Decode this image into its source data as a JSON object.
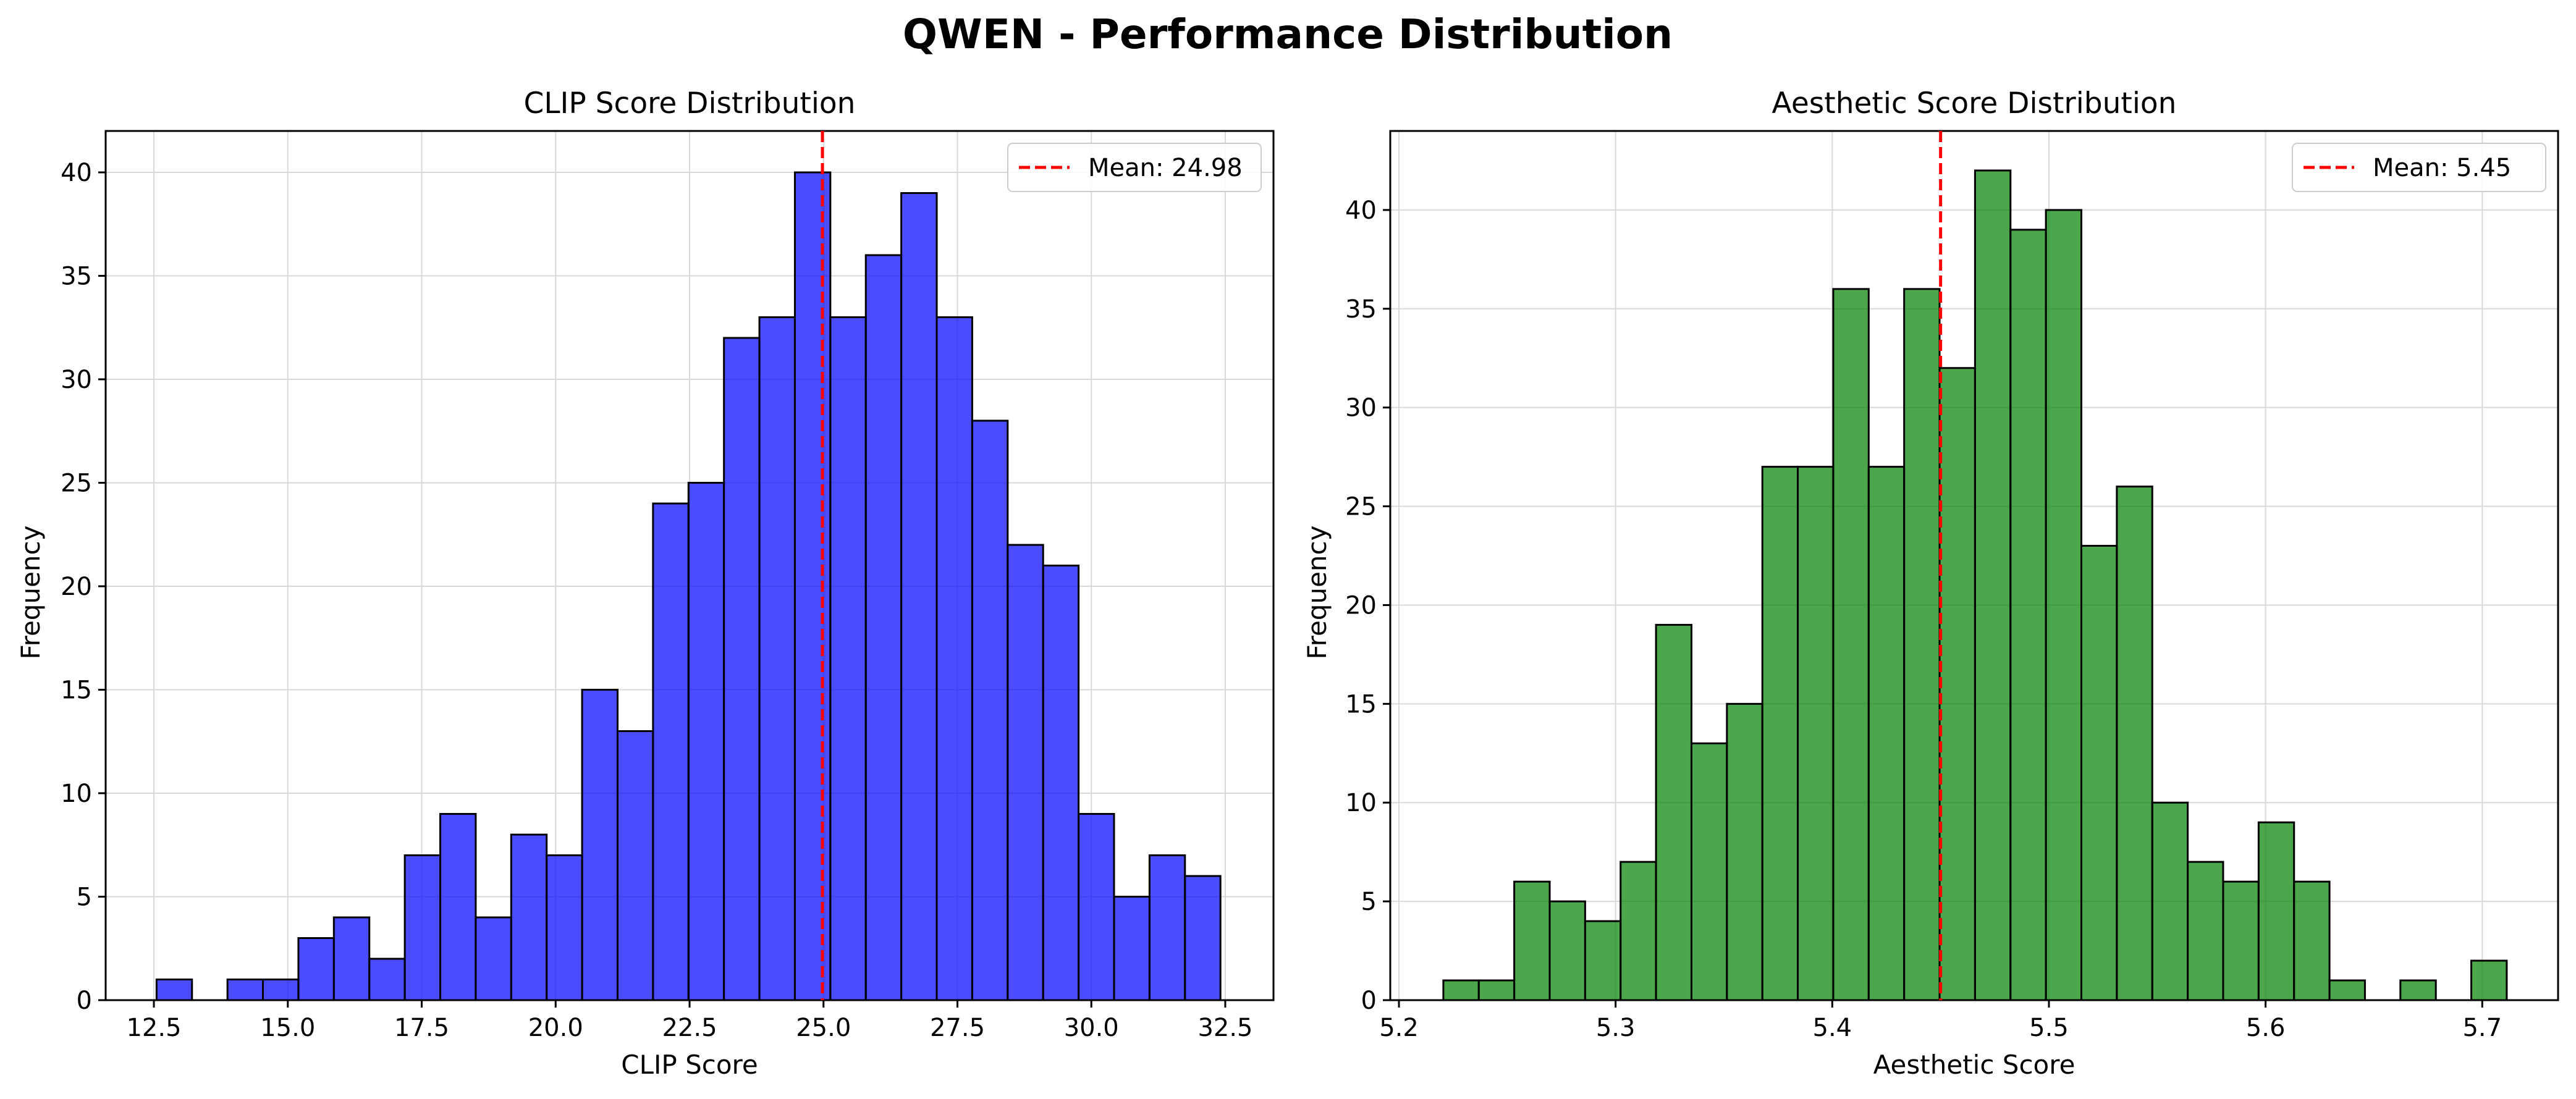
{
  "figure": {
    "title": "QWEN - Performance Distribution"
  },
  "chart_data": [
    {
      "type": "bar",
      "subtype": "histogram",
      "title": "CLIP Score Distribution",
      "xlabel": "CLIP Score",
      "ylabel": "Frequency",
      "xlim": [
        11.6,
        33.4
      ],
      "ylim": [
        0,
        42
      ],
      "xticks": [
        12.5,
        15.0,
        17.5,
        20.0,
        22.5,
        25.0,
        27.5,
        30.0,
        32.5
      ],
      "xtick_labels": [
        "12.5",
        "15.0",
        "17.5",
        "20.0",
        "22.5",
        "25.0",
        "27.5",
        "30.0",
        "32.5"
      ],
      "yticks": [
        0,
        5,
        10,
        15,
        20,
        25,
        30,
        35,
        40
      ],
      "bin_start": 12.55,
      "bin_width": 0.662,
      "values": [
        1,
        0,
        1,
        1,
        3,
        4,
        2,
        7,
        9,
        4,
        8,
        7,
        15,
        13,
        24,
        25,
        32,
        33,
        40,
        33,
        36,
        39,
        33,
        28,
        22,
        21,
        9,
        5,
        7,
        6
      ],
      "bar_color": "#0000ff",
      "bar_alpha": 0.7,
      "edge_color": "#000000",
      "mean": 24.98,
      "mean_line_color": "#ff0000",
      "legend_label": "Mean: 24.98",
      "legend_loc": "upper right",
      "grid": true
    },
    {
      "type": "bar",
      "subtype": "histogram",
      "title": "Aesthetic Score Distribution",
      "xlabel": "Aesthetic Score",
      "ylabel": "Frequency",
      "xlim": [
        5.196,
        5.735
      ],
      "ylim": [
        0,
        44
      ],
      "xticks": [
        5.2,
        5.3,
        5.4,
        5.5,
        5.6,
        5.7
      ],
      "xtick_labels": [
        "5.2",
        "5.3",
        "5.4",
        "5.5",
        "5.6",
        "5.7"
      ],
      "yticks": [
        0,
        5,
        10,
        15,
        20,
        25,
        30,
        35,
        40
      ],
      "bin_start": 5.2205,
      "bin_width": 0.01636,
      "values": [
        1,
        1,
        6,
        5,
        4,
        7,
        19,
        13,
        15,
        27,
        27,
        36,
        27,
        36,
        32,
        42,
        39,
        40,
        23,
        26,
        10,
        7,
        6,
        9,
        6,
        1,
        0,
        1,
        0,
        2
      ],
      "bar_color": "#008000",
      "bar_alpha": 0.7,
      "edge_color": "#000000",
      "mean": 5.45,
      "mean_line_color": "#ff0000",
      "legend_label": "Mean: 5.45",
      "legend_loc": "upper right",
      "grid": true
    }
  ]
}
